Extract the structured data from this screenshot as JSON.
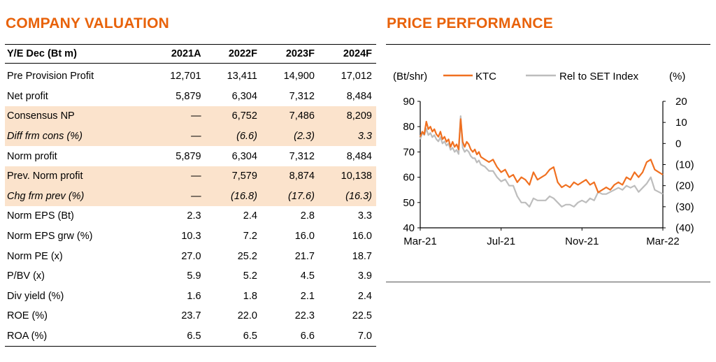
{
  "colors": {
    "heading": "#e8620a",
    "shade": "#fbe3cc",
    "ktc_line": "#f07020",
    "set_line": "#bdbdbd"
  },
  "valuation": {
    "title": "COMPANY VALUATION",
    "columns": [
      "Y/E Dec (Bt m)",
      "2021A",
      "2022F",
      "2023F",
      "2024F"
    ],
    "rows": [
      {
        "label": "Pre Provision Profit",
        "values": [
          "12,701",
          "13,411",
          "14,900",
          "17,012"
        ],
        "shaded": false,
        "italic": false
      },
      {
        "label": "Net profit",
        "values": [
          "5,879",
          "6,304",
          "7,312",
          "8,484"
        ],
        "shaded": false,
        "italic": false
      },
      {
        "label": "Consensus NP",
        "values": [
          "—",
          "6,752",
          "7,486",
          "8,209"
        ],
        "shaded": true,
        "italic": false
      },
      {
        "label": "Diff frm cons (%)",
        "values": [
          "—",
          "(6.6)",
          "(2.3)",
          "3.3"
        ],
        "shaded": true,
        "italic": true
      },
      {
        "label": "Norm profit",
        "values": [
          "5,879",
          "6,304",
          "7,312",
          "8,484"
        ],
        "shaded": false,
        "italic": false
      },
      {
        "label": "Prev. Norm profit",
        "values": [
          "—",
          "7,579",
          "8,874",
          "10,138"
        ],
        "shaded": true,
        "italic": false
      },
      {
        "label": "Chg frm prev (%)",
        "values": [
          "—",
          "(16.8)",
          "(17.6)",
          "(16.3)"
        ],
        "shaded": true,
        "italic": true
      },
      {
        "label": "Norm EPS (Bt)",
        "values": [
          "2.3",
          "2.4",
          "2.8",
          "3.3"
        ],
        "shaded": false,
        "italic": false
      },
      {
        "label": "Norm EPS grw (%)",
        "values": [
          "10.3",
          "7.2",
          "16.0",
          "16.0"
        ],
        "shaded": false,
        "italic": false
      },
      {
        "label": "Norm PE (x)",
        "values": [
          "27.0",
          "25.2",
          "21.7",
          "18.7"
        ],
        "shaded": false,
        "italic": false
      },
      {
        "label": "P/BV (x)",
        "values": [
          "5.9",
          "5.2",
          "4.5",
          "3.9"
        ],
        "shaded": false,
        "italic": false
      },
      {
        "label": "Div yield (%)",
        "values": [
          "1.6",
          "1.8",
          "2.1",
          "2.4"
        ],
        "shaded": false,
        "italic": false
      },
      {
        "label": "ROE (%)",
        "values": [
          "23.7",
          "22.0",
          "22.3",
          "22.5"
        ],
        "shaded": false,
        "italic": false
      },
      {
        "label": "ROA (%)",
        "values": [
          "6.5",
          "6.5",
          "6.6",
          "7.0"
        ],
        "shaded": false,
        "italic": false
      }
    ]
  },
  "performance": {
    "title": "PRICE PERFORMANCE"
  },
  "chart_data": {
    "type": "line",
    "left_axis_label": "(Bt/shr)",
    "right_axis_label": "(%)",
    "x_ticks": [
      "Mar-21",
      "Jul-21",
      "Nov-21",
      "Mar-22"
    ],
    "x_range_months": [
      0,
      12
    ],
    "y_left": {
      "range": [
        40,
        90
      ],
      "ticks": [
        "90",
        "80",
        "70",
        "60",
        "50",
        "40"
      ]
    },
    "y_right": {
      "range": [
        -40,
        20
      ],
      "ticks": [
        "20",
        "10",
        "0",
        "(10)",
        "(20)",
        "(30)",
        "(40)"
      ]
    },
    "legend": [
      "KTC",
      "Rel to SET Index"
    ],
    "grid": false,
    "series": [
      {
        "name": "KTC",
        "axis": "left",
        "color": "#f07020",
        "x": [
          0,
          0.1,
          0.2,
          0.3,
          0.4,
          0.5,
          0.6,
          0.7,
          0.8,
          0.9,
          1.0,
          1.1,
          1.2,
          1.3,
          1.4,
          1.5,
          1.6,
          1.7,
          1.8,
          1.9,
          2.0,
          2.1,
          2.2,
          2.3,
          2.4,
          2.5,
          2.6,
          2.7,
          2.8,
          2.9,
          3.0,
          3.2,
          3.4,
          3.6,
          3.8,
          4.0,
          4.2,
          4.4,
          4.6,
          4.8,
          5.0,
          5.2,
          5.4,
          5.6,
          5.8,
          6.0,
          6.2,
          6.4,
          6.6,
          6.8,
          7.0,
          7.2,
          7.4,
          7.6,
          7.8,
          8.0,
          8.2,
          8.4,
          8.6,
          8.8,
          9.0,
          9.2,
          9.4,
          9.6,
          9.8,
          10.0,
          10.2,
          10.4,
          10.6,
          10.8,
          11.0,
          11.2,
          11.4,
          11.6,
          11.8,
          12.0
        ],
        "y": [
          76,
          78,
          77,
          82,
          79,
          80,
          78,
          79,
          77,
          76,
          78,
          75,
          76,
          74,
          75,
          72,
          74,
          72,
          73,
          71,
          83,
          74,
          72,
          74,
          73,
          71,
          70,
          71,
          69,
          70,
          68,
          67,
          66,
          67,
          64,
          62,
          63,
          60,
          61,
          58,
          60,
          59,
          57,
          62,
          59,
          60,
          61,
          63,
          64,
          58,
          56,
          57,
          56,
          58,
          57,
          58,
          59,
          57,
          58,
          54,
          55,
          56,
          55,
          57,
          58,
          57,
          60,
          59,
          62,
          60,
          62,
          66,
          67,
          63,
          62,
          61
        ]
      },
      {
        "name": "Rel to SET Index",
        "axis": "right",
        "color": "#bdbdbd",
        "x": [
          0,
          0.1,
          0.2,
          0.3,
          0.4,
          0.5,
          0.6,
          0.7,
          0.8,
          0.9,
          1.0,
          1.1,
          1.2,
          1.3,
          1.4,
          1.5,
          1.6,
          1.7,
          1.8,
          1.9,
          2.0,
          2.1,
          2.2,
          2.3,
          2.4,
          2.5,
          2.6,
          2.7,
          2.8,
          2.9,
          3.0,
          3.2,
          3.4,
          3.6,
          3.8,
          4.0,
          4.2,
          4.4,
          4.6,
          4.8,
          5.0,
          5.2,
          5.4,
          5.6,
          5.8,
          6.0,
          6.2,
          6.4,
          6.6,
          6.8,
          7.0,
          7.2,
          7.4,
          7.6,
          7.8,
          8.0,
          8.2,
          8.4,
          8.6,
          8.8,
          9.0,
          9.2,
          9.4,
          9.6,
          9.8,
          10.0,
          10.2,
          10.4,
          10.6,
          10.8,
          11.0,
          11.2,
          11.4,
          11.6,
          11.8,
          12.0
        ],
        "y": [
          2,
          5,
          4,
          7,
          4,
          5,
          3,
          4,
          2,
          1,
          3,
          0,
          1,
          -1,
          0,
          -3,
          -2,
          -4,
          -3,
          -5,
          13,
          -2,
          -4,
          -3,
          -4,
          -6,
          -7,
          -7,
          -9,
          -8,
          -10,
          -11,
          -13,
          -13,
          -16,
          -18,
          -17,
          -20,
          -20,
          -25,
          -28,
          -28,
          -30,
          -26,
          -27,
          -27,
          -27,
          -25,
          -26,
          -28,
          -30,
          -29,
          -29,
          -30,
          -28,
          -27,
          -28,
          -26,
          -27,
          -23,
          -24,
          -24,
          -23,
          -22,
          -21,
          -22,
          -20,
          -21,
          -20,
          -23,
          -21,
          -19,
          -16,
          -22,
          -23,
          -24
        ]
      }
    ]
  }
}
